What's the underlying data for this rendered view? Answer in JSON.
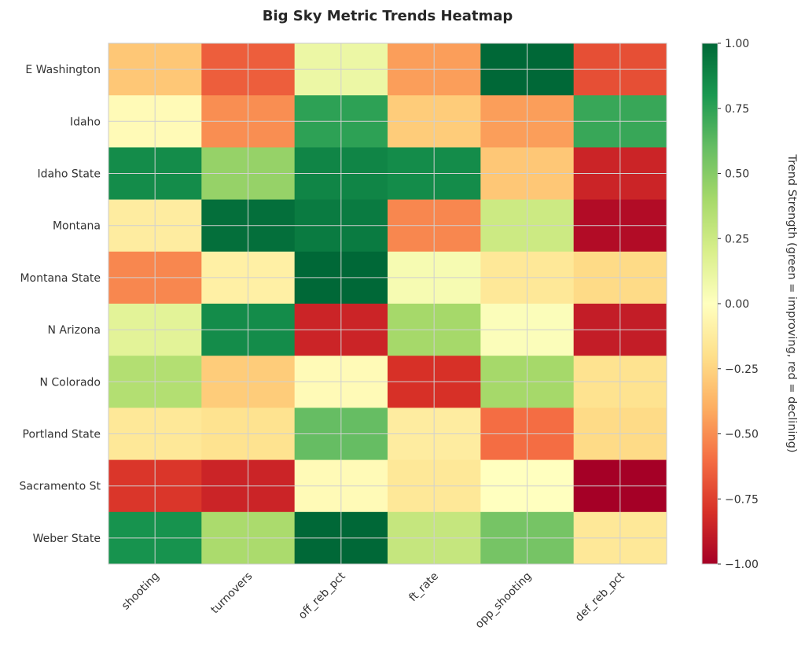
{
  "chart_data": {
    "type": "heatmap",
    "title": "Big Sky Metric Trends Heatmap",
    "rows": [
      "E Washington",
      "Idaho",
      "Idaho State",
      "Montana",
      "Montana State",
      "N Arizona",
      "N Colorado",
      "Portland State",
      "Sacramento St",
      "Weber State"
    ],
    "columns": [
      "shooting",
      "turnovers",
      "off_reb_pct",
      "ft_rate",
      "opp_shooting",
      "def_reb_pct"
    ],
    "values": [
      [
        -0.3,
        -0.65,
        0.1,
        -0.45,
        1.0,
        -0.7
      ],
      [
        -0.03,
        -0.5,
        0.75,
        -0.28,
        -0.45,
        0.72
      ],
      [
        0.85,
        0.45,
        0.88,
        0.85,
        -0.3,
        -0.85
      ],
      [
        -0.12,
        0.97,
        0.92,
        -0.52,
        0.25,
        -0.95
      ],
      [
        -0.52,
        -0.1,
        1.0,
        0.05,
        -0.15,
        -0.22
      ],
      [
        0.15,
        0.85,
        -0.85,
        0.4,
        0.02,
        -0.88
      ],
      [
        0.35,
        -0.28,
        -0.03,
        -0.8,
        0.4,
        -0.18
      ],
      [
        -0.15,
        -0.18,
        0.6,
        -0.12,
        -0.6,
        -0.22
      ],
      [
        -0.78,
        -0.85,
        -0.03,
        -0.15,
        0.0,
        -1.0
      ],
      [
        0.82,
        0.38,
        1.0,
        0.28,
        0.55,
        -0.15
      ]
    ],
    "colormap": "RdYlGn",
    "vmin": -1,
    "vmax": 1,
    "colorbar": {
      "label": "Trend Strength (green = improving, red = declining)",
      "ticks": [
        1.0,
        0.75,
        0.5,
        0.25,
        0.0,
        -0.25,
        -0.5,
        -0.75,
        -1.0
      ],
      "tick_labels": [
        "1.00",
        "0.75",
        "0.50",
        "0.25",
        "0.00",
        "−0.25",
        "−0.50",
        "−0.75",
        "−1.00"
      ]
    },
    "grid": true
  }
}
